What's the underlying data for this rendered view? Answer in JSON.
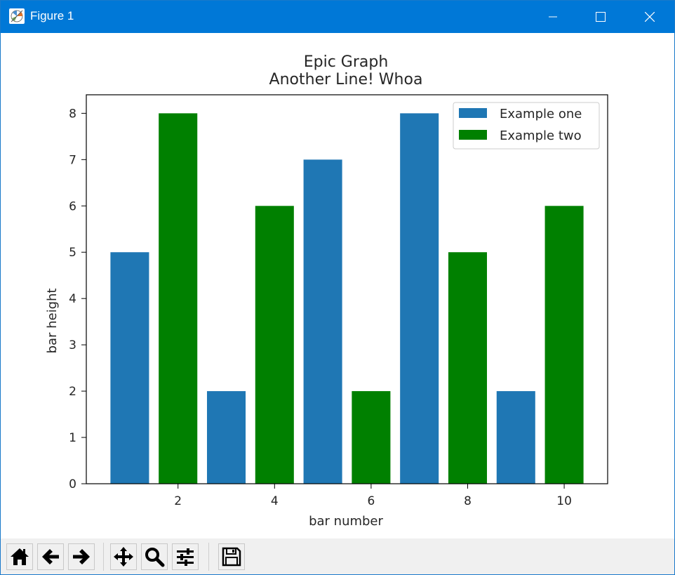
{
  "window": {
    "title": "Figure 1",
    "icons": {
      "app": "matplotlib-figure-icon",
      "minimize": "minimize-icon",
      "maximize": "maximize-icon",
      "close": "close-icon"
    }
  },
  "toolbar": {
    "buttons": [
      {
        "name": "home-button",
        "icon": "home-icon"
      },
      {
        "name": "back-button",
        "icon": "arrow-left-icon"
      },
      {
        "name": "forward-button",
        "icon": "arrow-right-icon"
      },
      {
        "name": "pan-button",
        "icon": "move-icon"
      },
      {
        "name": "zoom-button",
        "icon": "magnifier-icon"
      },
      {
        "name": "subplots-button",
        "icon": "sliders-icon"
      },
      {
        "name": "save-button",
        "icon": "floppy-disk-icon"
      }
    ]
  },
  "chart_data": {
    "type": "bar",
    "title": "Epic Graph",
    "subtitle": "Another Line! Whoa",
    "xlabel": "bar number",
    "ylabel": "bar height",
    "xlim": [
      0.1,
      10.9
    ],
    "ylim": [
      0,
      8.4
    ],
    "xticks": [
      2,
      4,
      6,
      8,
      10
    ],
    "yticks": [
      0,
      1,
      2,
      3,
      4,
      5,
      6,
      7,
      8
    ],
    "bar_width": 0.8,
    "grid": false,
    "legend_position": "top-right",
    "series": [
      {
        "name": "Example one",
        "color": "#1f77b4",
        "x": [
          1,
          3,
          5,
          7,
          9
        ],
        "values": [
          5,
          2,
          7,
          8,
          2
        ]
      },
      {
        "name": "Example two",
        "color": "#008000",
        "x": [
          2,
          4,
          6,
          8,
          10
        ],
        "values": [
          8,
          6,
          2,
          5,
          6
        ]
      }
    ]
  }
}
